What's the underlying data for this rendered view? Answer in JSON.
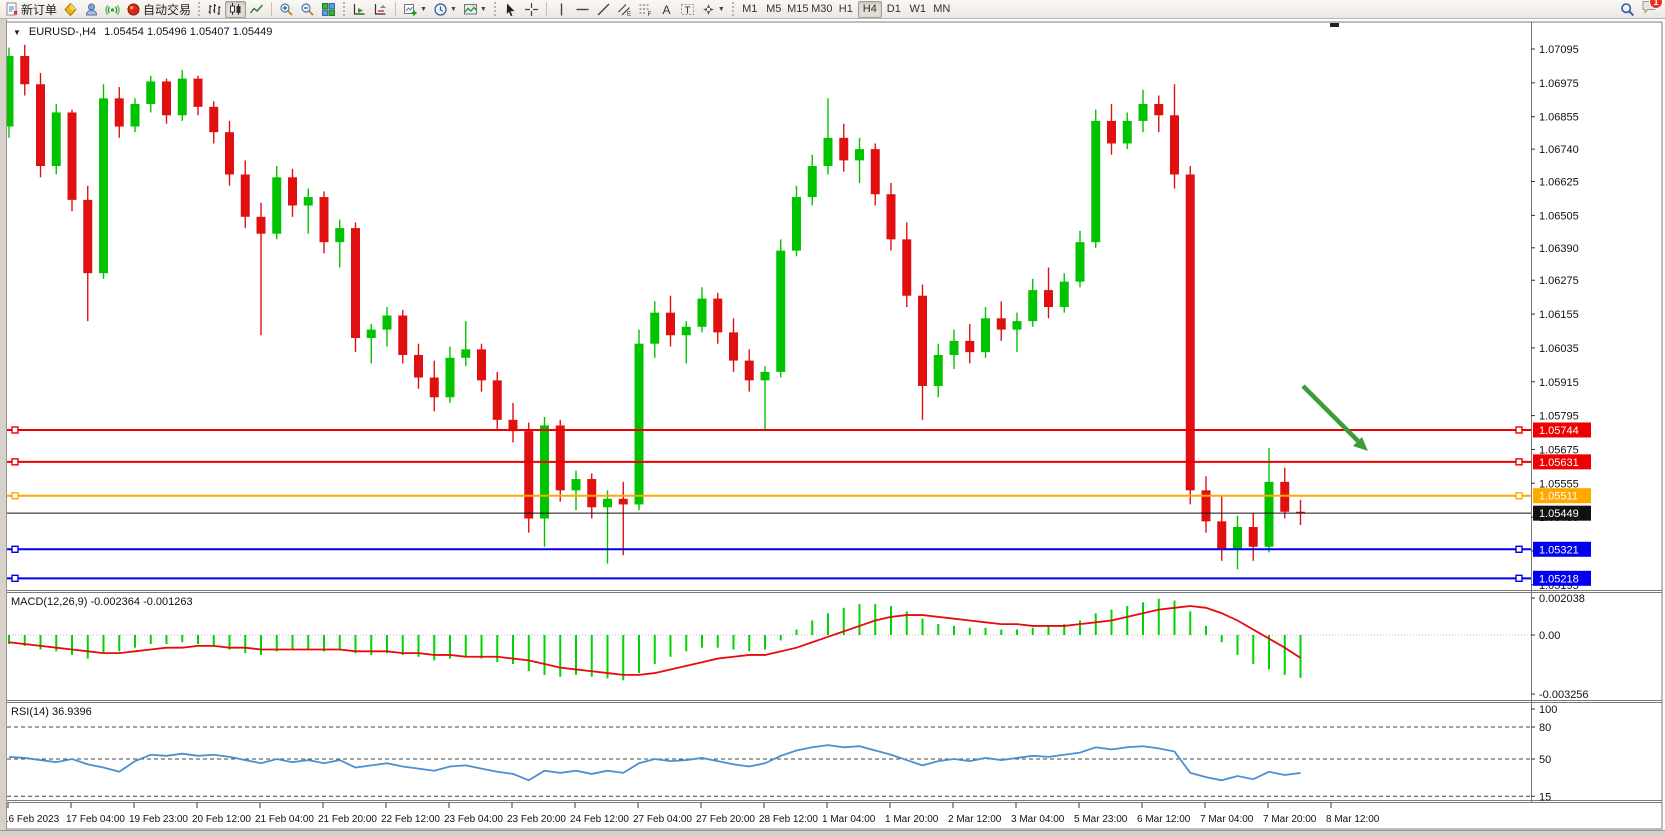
{
  "toolbar": {
    "new_order_label": "新订单",
    "autotrading_label": "自动交易",
    "timeframes": [
      "M1",
      "M5",
      "M15",
      "M30",
      "H1",
      "H4",
      "D1",
      "W1",
      "MN"
    ],
    "active_timeframe": "H4",
    "notification_count": "1",
    "icons": [
      "new-order-icon",
      "market-watch-icon",
      "profile-icon",
      "signals-icon",
      "autotrading-icon",
      "bar-chart-icon",
      "candlestick-chart-icon",
      "line-chart-icon",
      "zoom-in-icon",
      "zoom-out-icon",
      "tile-windows-icon",
      "auto-scroll-icon",
      "chart-shift-icon",
      "new-chart-icon",
      "period-icon",
      "template-icon",
      "cursor-icon",
      "crosshair-icon",
      "vertical-line-icon",
      "horizontal-line-icon",
      "trendline-icon",
      "channel-icon",
      "fibonacci-icon",
      "text-icon",
      "text-label-icon",
      "arrows-icon",
      "search-icon",
      "chat-icon"
    ]
  },
  "chart": {
    "symbol_period": "EURUSD-,H4",
    "quote": "1.05454 1.05496 1.05407 1.05449",
    "ohlc": {
      "open": "1.05454",
      "high": "1.05496",
      "low": "1.05407",
      "close": "1.05449"
    }
  },
  "price_axis": {
    "tick_labels": [
      "1.07095",
      "1.06975",
      "1.06855",
      "1.06740",
      "1.06625",
      "1.06505",
      "1.06390",
      "1.06275",
      "1.06155",
      "1.06035",
      "1.05915",
      "1.05795",
      "1.05675",
      "1.05555",
      "1.05435",
      "1.05315",
      "1.05195"
    ]
  },
  "hlines": [
    {
      "price": "1.05744",
      "color": "#ee0000",
      "thickness": 2,
      "markers": true
    },
    {
      "price": "1.05631",
      "color": "#ee0000",
      "thickness": 2,
      "markers": true
    },
    {
      "price": "1.05511",
      "color": "#ffa800",
      "thickness": 2,
      "markers": true
    },
    {
      "price": "1.05449",
      "color": "#111111",
      "thickness": 1,
      "markers": false
    },
    {
      "price": "1.05321",
      "color": "#0000ee",
      "thickness": 2,
      "markers": true
    },
    {
      "price": "1.05218",
      "color": "#0000ee",
      "thickness": 2,
      "markers": true
    }
  ],
  "macd": {
    "label": "MACD(12,26,9) -0.002364 -0.001263",
    "axis_labels": [
      "0.002038",
      "0.00",
      "-0.003256"
    ],
    "hist_color": "#00d300",
    "signal_color": "#e80b0b"
  },
  "rsi": {
    "label": "RSI(14) 36.9396",
    "axis_labels": [
      "100",
      "80",
      "50",
      "15"
    ],
    "dashed_levels": [
      80,
      50,
      15
    ],
    "line_color": "#4a90d2"
  },
  "time_axis": {
    "labels": [
      "16 Feb 2023",
      "17 Feb 04:00",
      "19 Feb 23:00",
      "20 Feb 12:00",
      "21 Feb 04:00",
      "21 Feb 20:00",
      "22 Feb 12:00",
      "23 Feb 04:00",
      "23 Feb 20:00",
      "24 Feb 12:00",
      "27 Feb 04:00",
      "27 Feb 20:00",
      "28 Feb 12:00",
      "1 Mar 04:00",
      "1 Mar 20:00",
      "2 Mar 12:00",
      "3 Mar 04:00",
      "5 Mar 23:00",
      "6 Mar 12:00",
      "7 Mar 04:00",
      "7 Mar 20:00",
      "8 Mar 12:00"
    ]
  },
  "annotation": {
    "arrow_color": "#3c9c3c"
  },
  "chart_data": {
    "type": "candlestick",
    "title": "EURUSD- H4",
    "bull_color": "#00c400",
    "bear_color": "#e01010",
    "price_range": [
      1.05177,
      1.07187
    ],
    "candles": [
      [
        1.0682,
        1.071,
        1.0678,
        1.0707
      ],
      [
        1.0707,
        1.0711,
        1.0693,
        1.0697
      ],
      [
        1.0697,
        1.0701,
        1.0664,
        1.0668
      ],
      [
        1.0668,
        1.069,
        1.0665,
        1.0687
      ],
      [
        1.0687,
        1.0688,
        1.0652,
        1.0656
      ],
      [
        1.0656,
        1.0661,
        1.0613,
        1.063
      ],
      [
        1.063,
        1.0697,
        1.0628,
        1.0692
      ],
      [
        1.0692,
        1.0696,
        1.0678,
        1.0682
      ],
      [
        1.0682,
        1.0692,
        1.068,
        1.069
      ],
      [
        1.069,
        1.07,
        1.0687,
        1.0698
      ],
      [
        1.0698,
        1.0699,
        1.0683,
        1.0686
      ],
      [
        1.0686,
        1.0702,
        1.0684,
        1.0699
      ],
      [
        1.0699,
        1.07,
        1.0686,
        1.0689
      ],
      [
        1.0689,
        1.0691,
        1.0676,
        1.068
      ],
      [
        1.068,
        1.0684,
        1.0661,
        1.0665
      ],
      [
        1.0665,
        1.067,
        1.0646,
        1.065
      ],
      [
        1.065,
        1.0655,
        1.0608,
        1.0644
      ],
      [
        1.0644,
        1.0668,
        1.0642,
        1.0664
      ],
      [
        1.0664,
        1.0667,
        1.065,
        1.0654
      ],
      [
        1.0654,
        1.066,
        1.0644,
        1.0657
      ],
      [
        1.0657,
        1.0659,
        1.0637,
        1.0641
      ],
      [
        1.0641,
        1.0649,
        1.0632,
        1.0646
      ],
      [
        1.0646,
        1.0648,
        1.0602,
        1.0607
      ],
      [
        1.0607,
        1.0612,
        1.0598,
        1.061
      ],
      [
        1.061,
        1.0618,
        1.0604,
        1.0615
      ],
      [
        1.0615,
        1.0617,
        1.0598,
        1.0601
      ],
      [
        1.0601,
        1.0605,
        1.0589,
        1.0593
      ],
      [
        1.0593,
        1.0599,
        1.0581,
        1.0586
      ],
      [
        1.0586,
        1.0604,
        1.0584,
        1.06
      ],
      [
        1.06,
        1.0613,
        1.0597,
        1.0603
      ],
      [
        1.0603,
        1.0605,
        1.0588,
        1.0592
      ],
      [
        1.0592,
        1.0595,
        1.0574,
        1.0578
      ],
      [
        1.0578,
        1.0584,
        1.057,
        1.0574
      ],
      [
        1.0574,
        1.0577,
        1.0538,
        1.0543
      ],
      [
        1.0543,
        1.0579,
        1.0533,
        1.0576
      ],
      [
        1.0576,
        1.0578,
        1.0549,
        1.0553
      ],
      [
        1.0553,
        1.056,
        1.0546,
        1.0557
      ],
      [
        1.0557,
        1.0559,
        1.0543,
        1.0547
      ],
      [
        1.0547,
        1.0553,
        1.0527,
        1.055
      ],
      [
        1.055,
        1.0556,
        1.053,
        1.0548
      ],
      [
        1.0548,
        1.061,
        1.0546,
        1.0605
      ],
      [
        1.0605,
        1.062,
        1.06,
        1.0616
      ],
      [
        1.0616,
        1.0622,
        1.0604,
        1.0608
      ],
      [
        1.0608,
        1.0613,
        1.0598,
        1.0611
      ],
      [
        1.0611,
        1.0625,
        1.0609,
        1.0621
      ],
      [
        1.0621,
        1.0623,
        1.0605,
        1.0609
      ],
      [
        1.0609,
        1.0614,
        1.0595,
        1.0599
      ],
      [
        1.0599,
        1.0603,
        1.0588,
        1.0592
      ],
      [
        1.0592,
        1.0597,
        1.0574,
        1.0595
      ],
      [
        1.0595,
        1.0642,
        1.0593,
        1.0638
      ],
      [
        1.0638,
        1.0661,
        1.0636,
        1.0657
      ],
      [
        1.0657,
        1.0672,
        1.0654,
        1.0668
      ],
      [
        1.0668,
        1.0692,
        1.0665,
        1.0678
      ],
      [
        1.0678,
        1.0683,
        1.0666,
        1.067
      ],
      [
        1.067,
        1.0678,
        1.0662,
        1.0674
      ],
      [
        1.0674,
        1.0676,
        1.0654,
        1.0658
      ],
      [
        1.0658,
        1.0662,
        1.0638,
        1.0642
      ],
      [
        1.0642,
        1.0648,
        1.0618,
        1.0622
      ],
      [
        1.0622,
        1.0626,
        1.0578,
        1.059
      ],
      [
        1.059,
        1.0605,
        1.0586,
        1.0601
      ],
      [
        1.0601,
        1.061,
        1.0596,
        1.0606
      ],
      [
        1.0606,
        1.0612,
        1.0598,
        1.0602
      ],
      [
        1.0602,
        1.0618,
        1.06,
        1.0614
      ],
      [
        1.0614,
        1.062,
        1.0606,
        1.061
      ],
      [
        1.061,
        1.0616,
        1.0602,
        1.0613
      ],
      [
        1.0613,
        1.0628,
        1.0611,
        1.0624
      ],
      [
        1.0624,
        1.0632,
        1.0614,
        1.0618
      ],
      [
        1.0618,
        1.063,
        1.0616,
        1.0627
      ],
      [
        1.0627,
        1.0645,
        1.0625,
        1.0641
      ],
      [
        1.0641,
        1.0688,
        1.0639,
        1.0684
      ],
      [
        1.0684,
        1.069,
        1.0672,
        1.0676
      ],
      [
        1.0676,
        1.0687,
        1.0674,
        1.0684
      ],
      [
        1.0684,
        1.0695,
        1.068,
        1.069
      ],
      [
        1.069,
        1.0693,
        1.068,
        1.0686
      ],
      [
        1.0686,
        1.0697,
        1.066,
        1.0665
      ],
      [
        1.0665,
        1.0668,
        1.0548,
        1.0553
      ],
      [
        1.0553,
        1.0558,
        1.0538,
        1.0542
      ],
      [
        1.0542,
        1.0551,
        1.0528,
        1.0532
      ],
      [
        1.0532,
        1.0544,
        1.0525,
        1.054
      ],
      [
        1.054,
        1.0545,
        1.0528,
        1.0533
      ],
      [
        1.0533,
        1.0568,
        1.0531,
        1.0556
      ],
      [
        1.0556,
        1.0561,
        1.0543,
        1.05454
      ],
      [
        1.05454,
        1.05496,
        1.05407,
        1.05449
      ]
    ],
    "macd_hist": [
      -0.0005,
      -0.0006,
      -0.0008,
      -0.0009,
      -0.0011,
      -0.0013,
      -0.001,
      -0.0009,
      -0.0007,
      -0.0005,
      -0.0005,
      -0.0004,
      -0.0005,
      -0.0006,
      -0.0008,
      -0.001,
      -0.0011,
      -0.0009,
      -0.0008,
      -0.0008,
      -0.0009,
      -0.0008,
      -0.001,
      -0.0011,
      -0.001,
      -0.0011,
      -0.0012,
      -0.0014,
      -0.0013,
      -0.0012,
      -0.0013,
      -0.0015,
      -0.0016,
      -0.002,
      -0.0022,
      -0.0023,
      -0.0022,
      -0.0023,
      -0.0024,
      -0.0025,
      -0.0021,
      -0.0016,
      -0.0012,
      -0.0009,
      -0.0007,
      -0.0007,
      -0.0008,
      -0.0009,
      -0.0008,
      -0.0003,
      0.0003,
      0.0008,
      0.0012,
      0.0015,
      0.0017,
      0.0017,
      0.0016,
      0.0013,
      0.0009,
      0.0006,
      0.0005,
      0.0004,
      0.0004,
      0.0003,
      0.0003,
      0.0004,
      0.0005,
      0.0006,
      0.0008,
      0.0012,
      0.0014,
      0.0016,
      0.0018,
      0.002,
      0.0019,
      0.0013,
      0.0005,
      -0.0004,
      -0.0011,
      -0.0016,
      -0.0019,
      -0.0022,
      -0.002364
    ],
    "macd_signal": [
      -0.0004,
      -0.0005,
      -0.0006,
      -0.0007,
      -0.0008,
      -0.0009,
      -0.001,
      -0.001,
      -0.0009,
      -0.0008,
      -0.0007,
      -0.0007,
      -0.0006,
      -0.0006,
      -0.0007,
      -0.0007,
      -0.0008,
      -0.0008,
      -0.0008,
      -0.0008,
      -0.0008,
      -0.0008,
      -0.0009,
      -0.0009,
      -0.0009,
      -0.001,
      -0.001,
      -0.0011,
      -0.0011,
      -0.0012,
      -0.0012,
      -0.0012,
      -0.0013,
      -0.0014,
      -0.0016,
      -0.0018,
      -0.0019,
      -0.002,
      -0.0021,
      -0.0022,
      -0.0022,
      -0.0021,
      -0.0019,
      -0.0017,
      -0.0015,
      -0.0013,
      -0.0012,
      -0.0011,
      -0.0011,
      -0.0009,
      -0.0007,
      -0.0004,
      -0.0001,
      0.0002,
      0.0005,
      0.0008,
      0.001,
      0.0011,
      0.0011,
      0.001,
      0.0009,
      0.0008,
      0.0007,
      0.0006,
      0.0006,
      0.0005,
      0.0005,
      0.0005,
      0.0006,
      0.0007,
      0.0008,
      0.001,
      0.0012,
      0.0014,
      0.0015,
      0.0016,
      0.0015,
      0.0012,
      0.0008,
      0.0003,
      -0.0002,
      -0.0007,
      -0.001263
    ],
    "rsi_values": [
      52,
      51,
      49,
      47,
      50,
      45,
      42,
      38,
      48,
      54,
      53,
      55,
      53,
      54,
      52,
      49,
      46,
      50,
      47,
      49,
      46,
      49,
      42,
      44,
      46,
      43,
      41,
      39,
      43,
      44,
      41,
      38,
      36,
      30,
      39,
      37,
      39,
      36,
      39,
      37,
      46,
      50,
      48,
      49,
      51,
      48,
      45,
      43,
      46,
      53,
      58,
      61,
      63,
      61,
      62,
      58,
      54,
      49,
      44,
      48,
      50,
      48,
      51,
      49,
      51,
      53,
      52,
      54,
      56,
      61,
      59,
      61,
      62,
      60,
      57,
      37,
      33,
      30,
      34,
      31,
      38,
      35,
      36.9
    ]
  }
}
